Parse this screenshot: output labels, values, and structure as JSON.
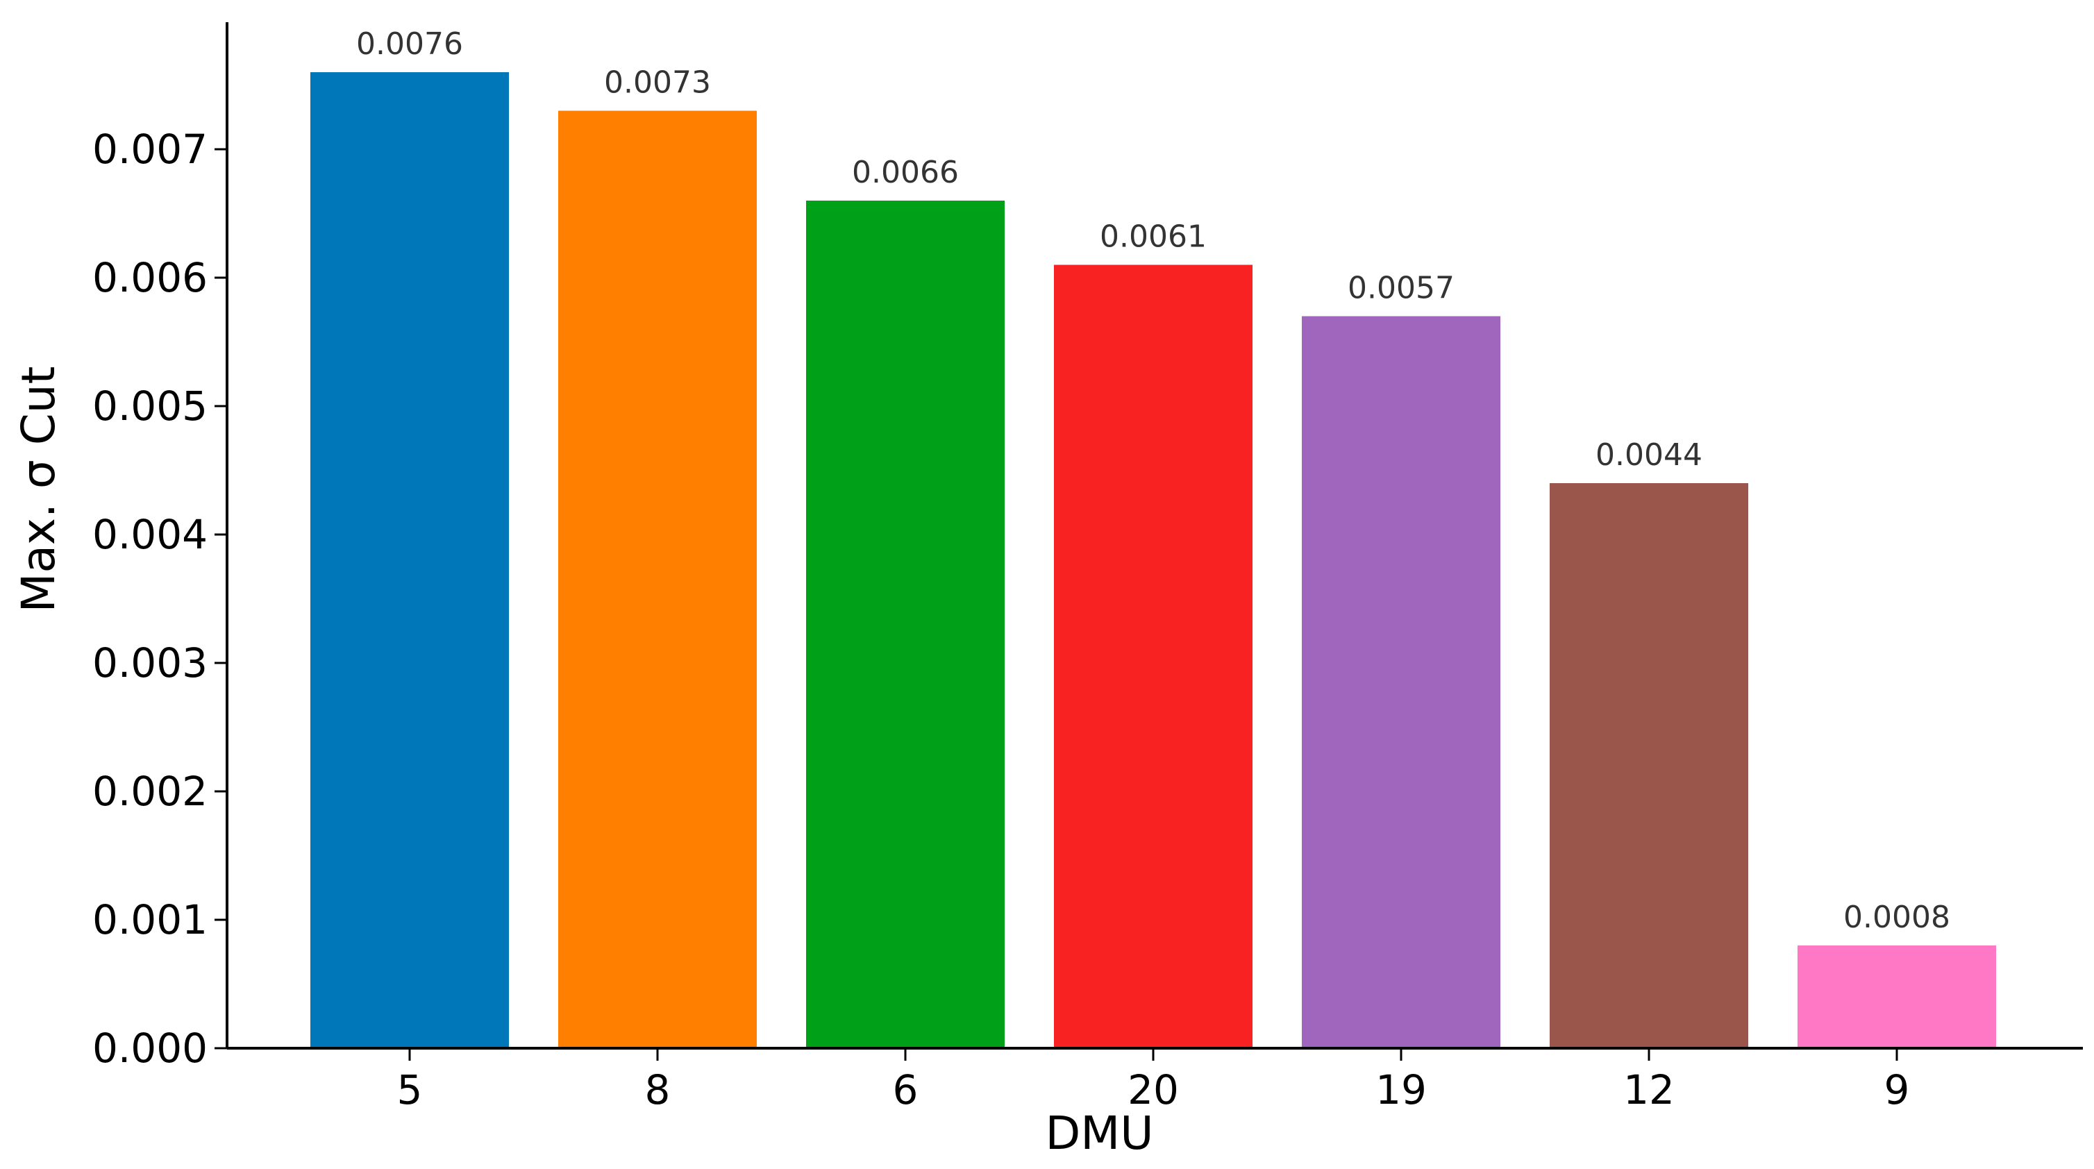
{
  "chart_data": {
    "type": "bar",
    "title": "",
    "xlabel": "DMU",
    "ylabel": "Max. σ Cut",
    "categories": [
      "5",
      "8",
      "6",
      "20",
      "19",
      "12",
      "9"
    ],
    "values": [
      0.0076,
      0.0073,
      0.0066,
      0.0061,
      0.0057,
      0.0044,
      0.0008
    ],
    "data_labels": [
      "0.0076",
      "0.0073",
      "0.0066",
      "0.0061",
      "0.0057",
      "0.0044",
      "0.0008"
    ],
    "colors": [
      "#0077b8",
      "#ff8000",
      "#00a018",
      "#f82222",
      "#a066be",
      "#9a564a",
      "#ff78c6"
    ],
    "ylim": [
      0,
      0.008
    ],
    "yticks": [
      0,
      0.001,
      0.002,
      0.003,
      0.004,
      0.005,
      0.006,
      0.007
    ],
    "ytick_labels": [
      "0.000",
      "0.001",
      "0.002",
      "0.003",
      "0.004",
      "0.005",
      "0.006",
      "0.007"
    ],
    "grid": false,
    "legend": "none"
  }
}
